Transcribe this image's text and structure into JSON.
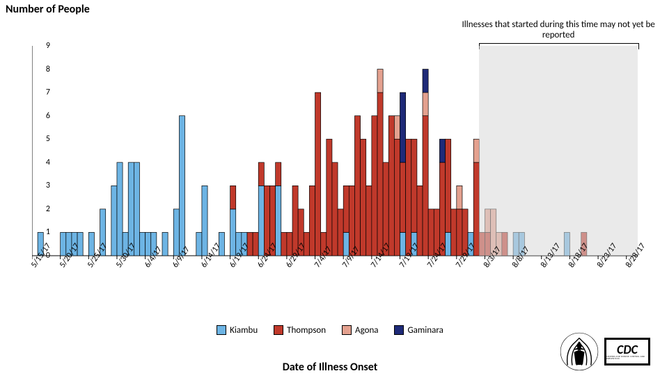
{
  "y_axis": {
    "title": "Number of People",
    "min": 0,
    "max": 9,
    "step": 1,
    "title_fontsize": 16,
    "label_fontsize": 12
  },
  "x_axis": {
    "title": "Date of Illness Onset",
    "title_fontsize": 16,
    "label_fontsize": 12,
    "labels": [
      "5/15/17",
      "5/20/17",
      "5/25/17",
      "5/30/17",
      "6/4/17",
      "6/9/17",
      "6/14/17",
      "6/19/17",
      "6/24/17",
      "6/29/17",
      "7/4/17",
      "7/9/17",
      "7/14/17",
      "7/19/17",
      "7/24/17",
      "7/29/17",
      "8/3/17",
      "8/8/17",
      "8/13/17",
      "8/18/17",
      "8/23/17",
      "8/28/17"
    ],
    "label_interval": 5
  },
  "series": {
    "kiambu": {
      "label": "Kiambu",
      "color": "#6db4e4"
    },
    "thompson": {
      "label": "Thompson",
      "color": "#c0392b"
    },
    "agona": {
      "label": "Agona",
      "color": "#e4a18f"
    },
    "gaminara": {
      "label": "Gaminara",
      "color": "#1e2a78"
    }
  },
  "bar_border": "#000000",
  "background_color": "#ffffff",
  "n_days": 107,
  "data": {
    "1": {
      "kiambu": 1
    },
    "5": {
      "kiambu": 1
    },
    "6": {
      "kiambu": 1
    },
    "7": {
      "kiambu": 1
    },
    "8": {
      "kiambu": 1
    },
    "10": {
      "kiambu": 1
    },
    "12": {
      "kiambu": 2
    },
    "14": {
      "kiambu": 3
    },
    "15": {
      "kiambu": 4
    },
    "16": {
      "kiambu": 1
    },
    "17": {
      "kiambu": 4
    },
    "18": {
      "kiambu": 4
    },
    "19": {
      "kiambu": 1
    },
    "20": {
      "kiambu": 1
    },
    "21": {
      "kiambu": 1
    },
    "23": {
      "kiambu": 1
    },
    "25": {
      "kiambu": 2
    },
    "26": {
      "kiambu": 6
    },
    "29": {
      "kiambu": 1
    },
    "30": {
      "kiambu": 3
    },
    "33": {
      "kiambu": 1
    },
    "35": {
      "kiambu": 2,
      "thompson": 1
    },
    "36": {
      "kiambu": 1
    },
    "37": {
      "kiambu": 1
    },
    "38": {
      "thompson": 1
    },
    "39": {
      "thompson": 1
    },
    "40": {
      "kiambu": 3,
      "thompson": 1
    },
    "41": {
      "thompson": 3
    },
    "42": {
      "thompson": 3
    },
    "43": {
      "kiambu": 3,
      "thompson": 1
    },
    "44": {
      "thompson": 1
    },
    "45": {
      "thompson": 1
    },
    "46": {
      "thompson": 3
    },
    "47": {
      "thompson": 2
    },
    "48": {
      "thompson": 1
    },
    "49": {
      "thompson": 3
    },
    "50": {
      "thompson": 7
    },
    "51": {
      "thompson": 1
    },
    "52": {
      "thompson": 5
    },
    "53": {
      "thompson": 4
    },
    "54": {
      "thompson": 2
    },
    "55": {
      "kiambu": 1,
      "thompson": 2
    },
    "56": {
      "thompson": 3
    },
    "57": {
      "thompson": 6
    },
    "58": {
      "thompson": 5
    },
    "59": {
      "thompson": 3
    },
    "60": {
      "thompson": 6
    },
    "61": {
      "thompson": 7,
      "agona": 1
    },
    "62": {
      "thompson": 4
    },
    "63": {
      "thompson": 6
    },
    "64": {
      "thompson": 5,
      "agona": 1
    },
    "65": {
      "kiambu": 1,
      "thompson": 3,
      "gaminara": 3
    },
    "66": {
      "thompson": 5
    },
    "67": {
      "kiambu": 1,
      "thompson": 4
    },
    "68": {
      "thompson": 3
    },
    "69": {
      "thompson": 6,
      "agona": 1,
      "gaminara": 1
    },
    "70": {
      "thompson": 2
    },
    "71": {
      "thompson": 2
    },
    "72": {
      "thompson": 4,
      "gaminara": 1
    },
    "73": {
      "kiambu": 1,
      "thompson": 4
    },
    "74": {
      "thompson": 2
    },
    "75": {
      "thompson": 2,
      "agona": 1
    },
    "76": {
      "thompson": 2
    },
    "77": {
      "kiambu": 1
    },
    "78": {
      "thompson": 4,
      "agona": 1
    },
    "79": {
      "thompson": 1
    },
    "80": {
      "thompson": 1,
      "agona": 1
    },
    "81": {
      "agona": 2
    },
    "82": {
      "agona": 1
    },
    "83": {
      "thompson": 1
    },
    "85": {
      "kiambu": 1
    },
    "86": {
      "kiambu": 1
    },
    "94": {
      "kiambu": 1
    },
    "97": {
      "thompson": 1
    }
  },
  "shading": {
    "start_day": 79,
    "end_day": 107,
    "color": "#d9d9d9",
    "opacity": 0.55,
    "note": "Illnesses that started during this time may not yet be reported",
    "note_fontsize": 13
  },
  "logos": {
    "hhs_alt": "HHS logo",
    "cdc_text": "CDC",
    "cdc_sub": "CENTERS FOR DISEASE CONTROL AND PREVENTION"
  }
}
